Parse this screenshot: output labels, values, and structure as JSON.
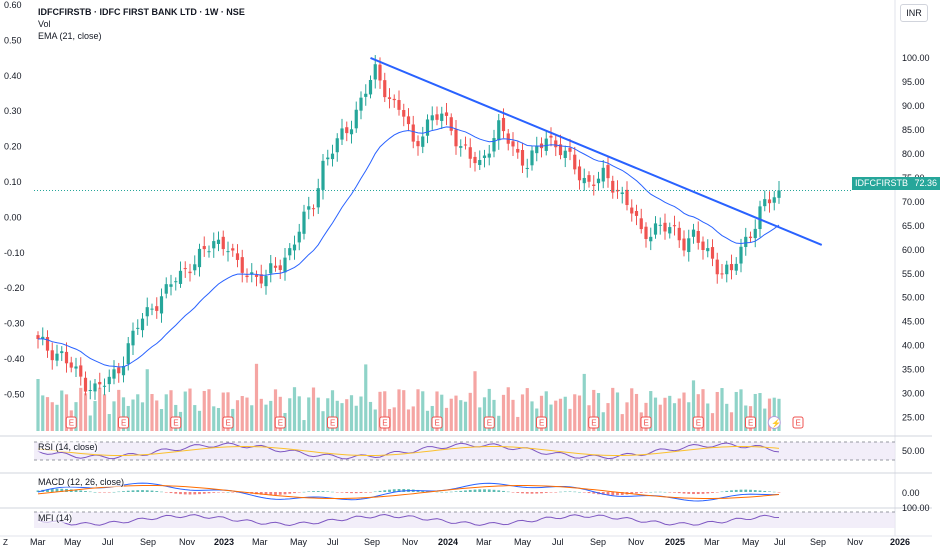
{
  "header": {
    "title": "IDFCFIRSTB · IDFC FIRST BANK LTD · 1W · NSE",
    "indicator_vol": "Vol",
    "indicator_ema": "EMA (21, close)"
  },
  "currency": "INR",
  "price_tag": {
    "symbol": "IDFCFIRSTB",
    "price": "72.36"
  },
  "panes": {
    "rsi_label": "RSI (14, close)",
    "macd_label": "MACD (12, 26, close)",
    "mfi_label": "MFI (14)"
  },
  "timezone_glyph": "Z",
  "colors": {
    "up": "#26a69a",
    "down": "#ef5350",
    "vol_up": "#8fd3c8",
    "vol_down": "#f5a5a3",
    "ema": "#2962ff",
    "trendline": "#2962ff",
    "rsi": "#7e57c2",
    "rsi_ma": "#fbc02d",
    "macd": "#2962ff",
    "signal": "#ff6d00",
    "earnings": "#ef5350"
  },
  "icons": {
    "earnings": "E",
    "dividend": "⚡"
  },
  "chart_data": {
    "type": "candlestick",
    "timeframe": "1W",
    "x_ticks": [
      "Mar",
      "May",
      "Jul",
      "Sep",
      "Nov",
      "2023",
      "Mar",
      "May",
      "Jul",
      "Sep",
      "Nov",
      "2024",
      "Mar",
      "May",
      "Jul",
      "Sep",
      "Nov",
      "2025",
      "Mar",
      "May",
      "Jul",
      "Sep",
      "Nov",
      "2026"
    ],
    "price_axis": {
      "ticks": [
        100,
        95,
        90,
        85,
        80,
        75,
        70,
        65,
        60,
        55,
        50,
        45,
        40,
        35,
        30,
        25
      ],
      "labels": [
        "100.00",
        "95.00",
        "90.00",
        "85.00",
        "80.00",
        "75.00",
        "70.00",
        "65.00",
        "60.00",
        "55.00",
        "50.00",
        "45.00",
        "40.00",
        "35.00",
        "30.00",
        "25.00"
      ],
      "range": [
        22,
        110
      ]
    },
    "left_axis": {
      "ticks": [
        0.6,
        0.5,
        0.4,
        0.3,
        0.2,
        0.1,
        0.0,
        -0.1,
        -0.2,
        -0.3,
        -0.4,
        -0.5
      ],
      "labels": [
        "0.60",
        "0.50",
        "0.40",
        "0.30",
        "0.20",
        "0.10",
        "0.00",
        "-0.10",
        "-0.20",
        "-0.30",
        "-0.40",
        "-0.50"
      ]
    },
    "last_price": 72.36,
    "close_series_keypoints": [
      [
        0,
        40.5
      ],
      [
        5,
        38
      ],
      [
        8,
        34
      ],
      [
        12,
        31
      ],
      [
        15,
        32.5
      ],
      [
        18,
        37.5
      ],
      [
        21,
        44
      ],
      [
        24,
        48.5
      ],
      [
        27,
        51
      ],
      [
        29,
        54
      ],
      [
        32,
        57
      ],
      [
        35,
        59
      ],
      [
        37,
        62
      ],
      [
        40,
        61
      ],
      [
        42,
        56
      ],
      [
        45,
        55
      ],
      [
        48,
        54
      ],
      [
        50,
        56
      ],
      [
        53,
        60
      ],
      [
        56,
        66
      ],
      [
        58,
        70
      ],
      [
        60,
        78
      ],
      [
        63,
        82
      ],
      [
        66,
        87
      ],
      [
        69,
        93
      ],
      [
        71,
        97
      ],
      [
        73,
        94
      ],
      [
        75,
        90
      ],
      [
        77,
        88
      ],
      [
        79,
        82
      ],
      [
        81,
        85
      ],
      [
        83,
        87
      ],
      [
        85,
        88
      ],
      [
        87,
        86
      ],
      [
        89,
        81
      ],
      [
        91,
        79
      ],
      [
        93,
        78
      ],
      [
        95,
        82
      ],
      [
        97,
        85
      ],
      [
        99,
        83
      ],
      [
        101,
        80
      ],
      [
        103,
        78
      ],
      [
        105,
        80
      ],
      [
        107,
        84
      ],
      [
        110,
        81
      ],
      [
        113,
        77
      ],
      [
        116,
        74
      ],
      [
        119,
        75
      ],
      [
        122,
        73
      ],
      [
        125,
        68
      ],
      [
        127,
        63
      ],
      [
        130,
        65
      ],
      [
        133,
        64
      ],
      [
        136,
        62
      ],
      [
        138,
        63
      ],
      [
        140,
        60
      ],
      [
        142,
        58
      ],
      [
        144,
        56
      ],
      [
        146,
        55
      ],
      [
        148,
        60
      ],
      [
        150,
        64
      ],
      [
        152,
        68
      ],
      [
        154,
        70
      ],
      [
        156,
        72.36
      ]
    ],
    "trendline": {
      "from": [
        "Jul 2023",
        100.0
      ],
      "to": [
        "Jul 2025",
        62.0
      ]
    },
    "ema_period": 21,
    "rsi": {
      "ticks": [
        50
      ],
      "labels": [
        "50.00"
      ],
      "range": [
        0,
        100
      ]
    },
    "macd": {
      "ticks": [
        0
      ],
      "labels": [
        "0.00"
      ]
    },
    "mfi": {
      "ticks": [
        100
      ],
      "labels": [
        "100.00"
      ],
      "range": [
        0,
        100
      ]
    }
  }
}
